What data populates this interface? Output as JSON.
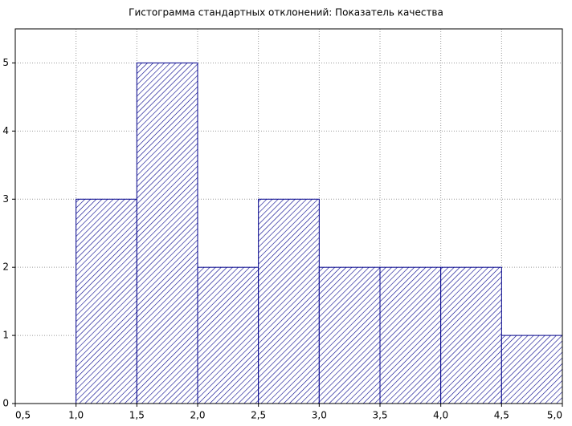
{
  "chart_data": {
    "type": "histogram",
    "title": "Гистограмма стандартных отклонений: Показатель качества",
    "bins": [
      1.0,
      1.5,
      2.0,
      2.5,
      3.0,
      3.5,
      4.0,
      4.5,
      5.0
    ],
    "counts": [
      3,
      5,
      2,
      3,
      2,
      2,
      2,
      1
    ],
    "color": "#00008b",
    "xlim": [
      0.5,
      5.0
    ],
    "xticks": [
      {
        "value": 0.5,
        "label": "0,5"
      },
      {
        "value": 1.0,
        "label": "1,0"
      },
      {
        "value": 1.5,
        "label": "1,5"
      },
      {
        "value": 2.0,
        "label": "2,0"
      },
      {
        "value": 2.5,
        "label": "2,5"
      },
      {
        "value": 3.0,
        "label": "3,0"
      },
      {
        "value": 3.5,
        "label": "3,5"
      },
      {
        "value": 4.0,
        "label": "4,0"
      },
      {
        "value": 4.5,
        "label": "4,5"
      },
      {
        "value": 5.0,
        "label": "5,0"
      }
    ],
    "ylim": [
      0,
      5.5
    ],
    "yticks": [
      0,
      1,
      2,
      3,
      4,
      5
    ],
    "grid": true
  }
}
